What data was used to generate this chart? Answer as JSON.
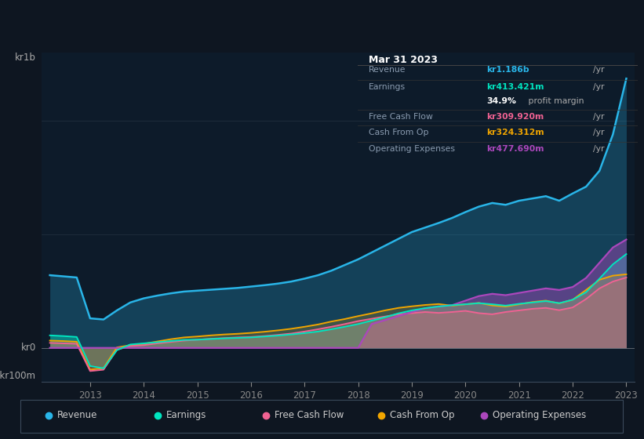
{
  "background_color": "#0e1621",
  "plot_bg_color": "#0d1b2a",
  "colors": {
    "revenue": "#29b5e8",
    "earnings": "#00e5c0",
    "free_cash_flow": "#f06292",
    "cash_from_op": "#f0a500",
    "operating_expenses": "#ab47bc"
  },
  "legend": [
    {
      "label": "Revenue",
      "color": "#29b5e8"
    },
    {
      "label": "Earnings",
      "color": "#00e5c0"
    },
    {
      "label": "Free Cash Flow",
      "color": "#f06292"
    },
    {
      "label": "Cash From Op",
      "color": "#f0a500"
    },
    {
      "label": "Operating Expenses",
      "color": "#ab47bc"
    }
  ],
  "x_years": [
    2012.25,
    2012.5,
    2012.75,
    2013.0,
    2013.25,
    2013.5,
    2013.75,
    2014.0,
    2014.25,
    2014.5,
    2014.75,
    2015.0,
    2015.25,
    2015.5,
    2015.75,
    2016.0,
    2016.25,
    2016.5,
    2016.75,
    2017.0,
    2017.25,
    2017.5,
    2017.75,
    2018.0,
    2018.25,
    2018.5,
    2018.75,
    2019.0,
    2019.25,
    2019.5,
    2019.75,
    2020.0,
    2020.25,
    2020.5,
    2020.75,
    2021.0,
    2021.25,
    2021.5,
    2021.75,
    2022.0,
    2022.25,
    2022.5,
    2022.75,
    2023.0
  ],
  "revenue": [
    320,
    315,
    310,
    130,
    125,
    165,
    200,
    218,
    230,
    240,
    248,
    252,
    256,
    260,
    264,
    270,
    276,
    283,
    292,
    305,
    320,
    340,
    365,
    390,
    420,
    450,
    480,
    510,
    530,
    550,
    572,
    598,
    622,
    638,
    630,
    648,
    658,
    668,
    648,
    680,
    710,
    780,
    940,
    1186
  ],
  "earnings": [
    55,
    52,
    48,
    -80,
    -90,
    -10,
    15,
    20,
    25,
    30,
    35,
    36,
    39,
    42,
    44,
    46,
    50,
    54,
    59,
    65,
    72,
    82,
    93,
    105,
    120,
    135,
    152,
    165,
    175,
    182,
    188,
    192,
    197,
    192,
    186,
    194,
    200,
    206,
    197,
    212,
    245,
    305,
    368,
    413
  ],
  "free_cash_flow": [
    22,
    20,
    18,
    -102,
    -96,
    -8,
    8,
    12,
    20,
    26,
    32,
    36,
    40,
    43,
    46,
    48,
    52,
    57,
    63,
    72,
    82,
    93,
    105,
    118,
    128,
    138,
    148,
    153,
    158,
    154,
    158,
    163,
    153,
    148,
    158,
    165,
    172,
    176,
    166,
    178,
    215,
    262,
    292,
    310
  ],
  "cash_from_op": [
    32,
    30,
    27,
    -96,
    -89,
    2,
    12,
    18,
    28,
    38,
    46,
    50,
    55,
    59,
    62,
    66,
    71,
    77,
    84,
    93,
    103,
    116,
    127,
    140,
    152,
    165,
    176,
    183,
    189,
    193,
    186,
    192,
    198,
    187,
    182,
    192,
    202,
    208,
    196,
    212,
    255,
    300,
    318,
    324
  ],
  "operating_expenses": [
    0,
    0,
    0,
    0,
    0,
    0,
    0,
    0,
    0,
    0,
    0,
    0,
    0,
    0,
    0,
    0,
    0,
    0,
    0,
    0,
    0,
    0,
    0,
    0,
    105,
    122,
    140,
    158,
    174,
    183,
    188,
    208,
    228,
    238,
    232,
    242,
    252,
    262,
    255,
    268,
    308,
    375,
    442,
    477
  ],
  "ylim_min": -150,
  "ylim_max": 1300,
  "x_min": 2012.1,
  "x_max": 2023.15
}
